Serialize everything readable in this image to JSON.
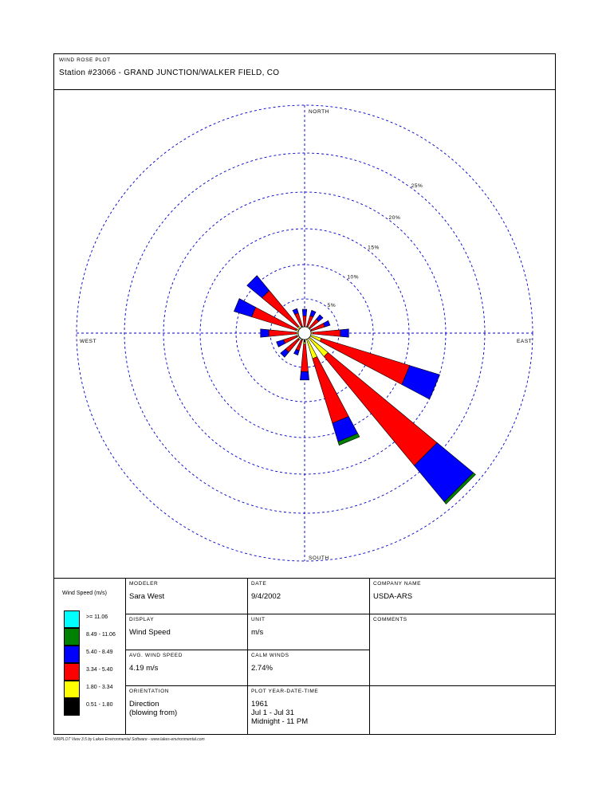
{
  "header": {
    "plot_type": "WIND ROSE PLOT",
    "station": "Station #23066 - GRAND JUNCTION/WALKER FIELD, CO"
  },
  "chart_data": {
    "type": "wind_rose",
    "direction_labels": {
      "north": "NORTH",
      "south": "SOUTH",
      "east": "EAST",
      "west": "WEST"
    },
    "ring_labels": [
      "5%",
      "10%",
      "15%",
      "20%",
      "25%"
    ],
    "rings_percent": [
      5,
      10,
      15,
      20,
      25
    ],
    "directions_deg": [
      0,
      22.5,
      45,
      67.5,
      90,
      112.5,
      135,
      157.5,
      180,
      202.5,
      225,
      247.5,
      270,
      292.5,
      315,
      337.5
    ],
    "speed_bins": [
      "0.51 - 1.80",
      "1.80 - 3.34",
      "3.34 - 5.40",
      "5.40 - 8.49",
      "8.49 - 11.06",
      ">= 11.06"
    ],
    "bin_colors": [
      "#000000",
      "#ffff00",
      "#ff0000",
      "#0000ff",
      "#008000",
      "#00ffff"
    ],
    "frequencies_percent": [
      [
        0.0,
        0.0,
        1.2,
        0.7,
        0.0,
        0.0
      ],
      [
        0.0,
        0.1,
        1.2,
        0.6,
        0.0,
        0.0
      ],
      [
        0.0,
        0.1,
        1.2,
        0.6,
        0.0,
        0.0
      ],
      [
        0.0,
        0.1,
        1.5,
        0.6,
        0.0,
        0.0
      ],
      [
        0.0,
        0.2,
        3.0,
        0.9,
        0.0,
        0.0
      ],
      [
        0.0,
        1.2,
        10.0,
        3.4,
        0.0,
        0.0
      ],
      [
        0.0,
        2.6,
        15.3,
        5.1,
        0.3,
        0.0
      ],
      [
        0.0,
        2.2,
        7.3,
        2.1,
        0.4,
        0.0
      ],
      [
        0.3,
        0.2,
        3.0,
        0.9,
        0.0,
        0.0
      ],
      [
        0.0,
        0.1,
        1.2,
        0.5,
        0.0,
        0.0
      ],
      [
        0.0,
        0.2,
        1.8,
        0.7,
        0.0,
        0.0
      ],
      [
        0.0,
        0.2,
        1.5,
        0.8,
        0.0,
        0.0
      ],
      [
        0.0,
        0.2,
        3.0,
        0.9,
        0.0,
        0.0
      ],
      [
        0.0,
        0.3,
        5.0,
        2.0,
        0.0,
        0.0
      ],
      [
        0.0,
        0.3,
        5.0,
        2.1,
        0.0,
        0.0
      ],
      [
        0.0,
        0.1,
        1.5,
        0.5,
        0.0,
        0.0
      ]
    ],
    "grid": true
  },
  "legend": {
    "title": "Wind Speed (m/s)",
    "items": [
      {
        "label": ">= 11.06",
        "color": "#00ffff"
      },
      {
        "label": "8.49 - 11.06",
        "color": "#008000"
      },
      {
        "label": "5.40 - 8.49",
        "color": "#0000ff"
      },
      {
        "label": "3.34 - 5.40",
        "color": "#ff0000"
      },
      {
        "label": "1.80 - 3.34",
        "color": "#ffff00"
      },
      {
        "label": "0.51 - 1.80",
        "color": "#000000"
      }
    ]
  },
  "info": {
    "modeler_label": "MODELER",
    "modeler": "Sara West",
    "date_label": "DATE",
    "date": "9/4/2002",
    "company_label": "COMPANY NAME",
    "company": "USDA-ARS",
    "display_label": "DISPLAY",
    "display": "Wind Speed",
    "unit_label": "UNIT",
    "unit": "m/s",
    "comments_label": "COMMENTS",
    "avg_label": "AVG. WIND SPEED",
    "avg": "4.19 m/s",
    "calm_label": "CALM WINDS",
    "calm": "2.74%",
    "orientation_label": "ORIENTATION",
    "orientation": "Direction\n(blowing from)",
    "plot_time_label": "PLOT YEAR-DATE-TIME",
    "plot_time": "1961\nJul 1 - Jul 31\nMidnight  -  11 PM"
  },
  "footer": "WRPLOT View 3.5 by Lakes Environmental Software - www.lakes-environmental.com"
}
